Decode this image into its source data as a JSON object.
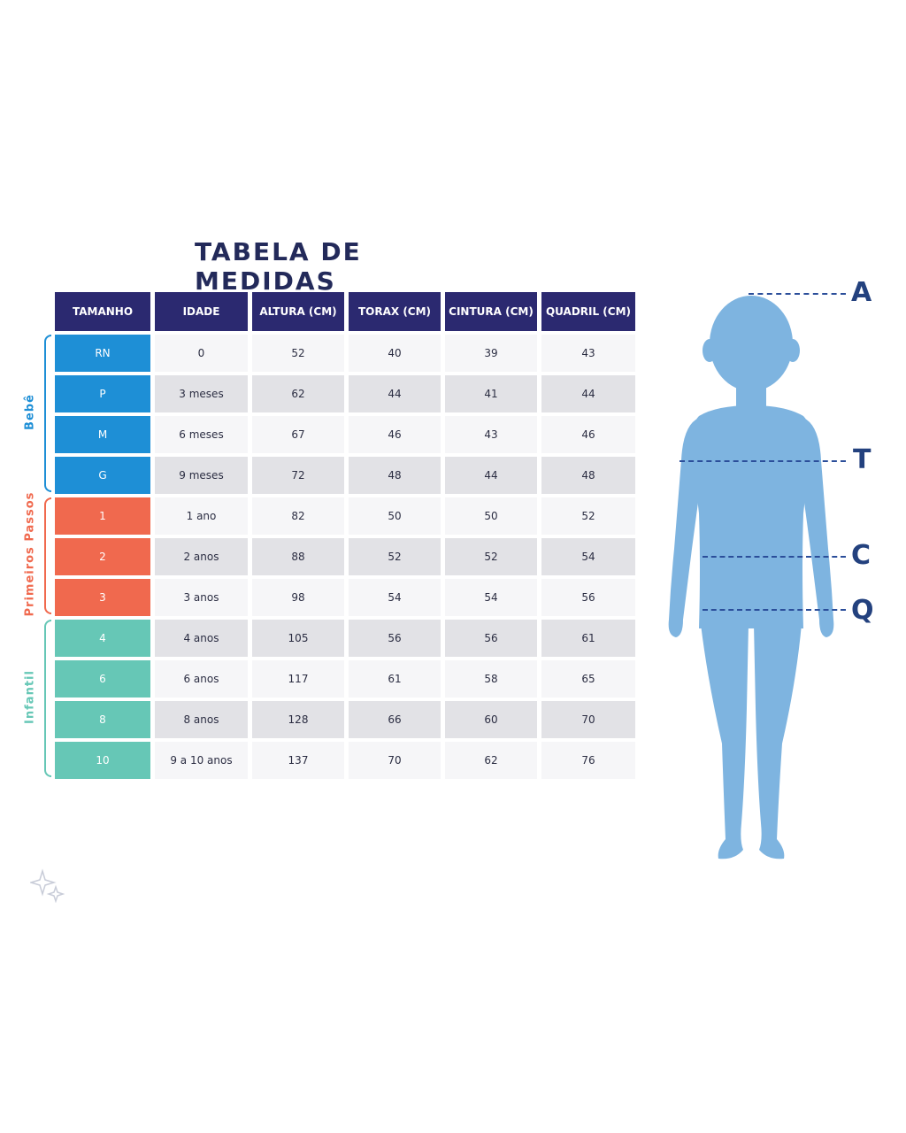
{
  "title": "TABELA DE MEDIDAS",
  "headers": [
    "TAMANHO",
    "IDADE",
    "ALTURA (CM)",
    "TORAX (CM)",
    "CINTURA (CM)",
    "QUADRIL (CM)"
  ],
  "rows": [
    {
      "size": "RN",
      "age": "0",
      "altura": "52",
      "torax": "40",
      "cintura": "39",
      "quadril": "43",
      "group": "bebe"
    },
    {
      "size": "P",
      "age": "3 meses",
      "altura": "62",
      "torax": "44",
      "cintura": "41",
      "quadril": "44",
      "group": "bebe"
    },
    {
      "size": "M",
      "age": "6 meses",
      "altura": "67",
      "torax": "46",
      "cintura": "43",
      "quadril": "46",
      "group": "bebe"
    },
    {
      "size": "G",
      "age": "9 meses",
      "altura": "72",
      "torax": "48",
      "cintura": "44",
      "quadril": "48",
      "group": "bebe"
    },
    {
      "size": "1",
      "age": "1 ano",
      "altura": "82",
      "torax": "50",
      "cintura": "50",
      "quadril": "52",
      "group": "primeiros"
    },
    {
      "size": "2",
      "age": "2 anos",
      "altura": "88",
      "torax": "52",
      "cintura": "52",
      "quadril": "54",
      "group": "primeiros"
    },
    {
      "size": "3",
      "age": "3 anos",
      "altura": "98",
      "torax": "54",
      "cintura": "54",
      "quadril": "56",
      "group": "primeiros"
    },
    {
      "size": "4",
      "age": "4 anos",
      "altura": "105",
      "torax": "56",
      "cintura": "56",
      "quadril": "61",
      "group": "infantil"
    },
    {
      "size": "6",
      "age": "6 anos",
      "altura": "117",
      "torax": "61",
      "cintura": "58",
      "quadril": "65",
      "group": "infantil"
    },
    {
      "size": "8",
      "age": "8 anos",
      "altura": "128",
      "torax": "66",
      "cintura": "60",
      "quadril": "70",
      "group": "infantil"
    },
    {
      "size": "10",
      "age": "9 a 10 anos",
      "altura": "137",
      "torax": "70",
      "cintura": "62",
      "quadril": "76",
      "group": "infantil"
    }
  ],
  "groups": {
    "bebe": {
      "label": "Bebê",
      "color": "#1e8fd6"
    },
    "primeiros": {
      "label": "Primeiros Passos",
      "color": "#f0694e"
    },
    "infantil": {
      "label": "Infantil",
      "color": "#66c7b6"
    }
  },
  "figure": {
    "color": "#7eb4e0",
    "marks": [
      "A",
      "T",
      "C",
      "Q"
    ]
  }
}
